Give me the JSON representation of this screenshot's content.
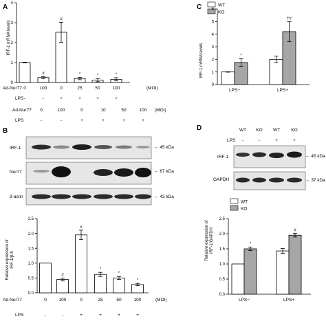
{
  "panels": {
    "A": {
      "letter": "A",
      "ylabel": "IRF-1 mRNA levels",
      "row1_label": "Ad-Nur77",
      "row1": [
        "0",
        "100",
        "0",
        "25",
        "50",
        "100"
      ],
      "row1_unit": "(MOI)",
      "row2_label": "LPS",
      "row2": [
        "-",
        "-",
        "+",
        "+",
        "+",
        "+"
      ]
    },
    "B": {
      "letter": "B",
      "top_row1_label": "Ad-Nur77",
      "top_row1": [
        "0",
        "100",
        "0",
        "10",
        "50",
        "100"
      ],
      "top_row1_unit": "(MOI)",
      "top_row2_label": "LPS",
      "top_row2": [
        "-",
        "-",
        "+",
        "+",
        "+",
        "+"
      ],
      "blots": [
        {
          "name": "IRF-1",
          "kda": "45 kDa"
        },
        {
          "name": "Nur77",
          "kda": "67 kDa"
        },
        {
          "name": "β-actin",
          "kda": "43 kDa"
        }
      ],
      "ylabel_line1": "Relative expression of",
      "ylabel_line2": "IRF-1/β-h",
      "row1_label": "Ad-Nur77",
      "row1": [
        "0",
        "100",
        "0",
        "25",
        "50",
        "100"
      ],
      "row1_unit": "(MOI)",
      "row2_label": "LPS",
      "row2": [
        "-",
        "-",
        "+",
        "+",
        "+",
        "+"
      ]
    },
    "C": {
      "letter": "C",
      "ylabel": "IRF-1 mRNA levels",
      "legend": [
        "WT",
        "KO"
      ],
      "groups": [
        "LPS−",
        "LPS+"
      ]
    },
    "D": {
      "letter": "D",
      "top_row1": [
        "WT",
        "KO",
        "WT",
        "KO"
      ],
      "top_row2_label": "LPS",
      "top_row2": [
        "-",
        "-",
        "+",
        "+"
      ],
      "blots": [
        {
          "name": "IRF-1",
          "kda": "45 kDa"
        },
        {
          "name": "GAPDH",
          "kda": "37 kDa"
        }
      ],
      "legend": [
        "WT",
        "KO"
      ],
      "ylabel_line1": "Relative expression of",
      "ylabel_line2": "IRF-1/GAPDH",
      "groups": [
        "LPS−",
        "LPS+"
      ]
    }
  },
  "chart_data": [
    {
      "id": "A",
      "type": "bar",
      "categories": [
        "1",
        "2",
        "3",
        "4",
        "5",
        "6"
      ],
      "values": [
        1.0,
        0.25,
        2.52,
        0.2,
        0.12,
        0.16
      ],
      "errors": [
        0.02,
        0.05,
        0.5,
        0.06,
        0.08,
        0.08
      ],
      "markers": [
        "",
        "#",
        "#",
        "*",
        "*",
        "*"
      ],
      "ylim": [
        0,
        4
      ],
      "yticks": [
        "0",
        "1",
        "2",
        "3",
        "4"
      ],
      "ylabel": "IRF-1 mRNA levels",
      "colors": {
        "bar": "#ffffff"
      }
    },
    {
      "id": "B",
      "type": "bar",
      "categories": [
        "1",
        "2",
        "3",
        "4",
        "5",
        "6"
      ],
      "values": [
        1.0,
        0.45,
        1.95,
        0.62,
        0.5,
        0.28
      ],
      "errors": [
        0.0,
        0.05,
        0.16,
        0.07,
        0.05,
        0.04
      ],
      "markers": [
        "",
        "#",
        "#",
        "*",
        "*",
        "*"
      ],
      "ylim": [
        0,
        2.5
      ],
      "yticks": [
        "0.0",
        "0.5",
        "1.0",
        "1.5",
        "2.0",
        "2.5"
      ],
      "colors": {
        "bar": "#ffffff"
      }
    },
    {
      "id": "C",
      "type": "bar",
      "categories": [
        "LPS−",
        "LPS+"
      ],
      "series": [
        {
          "name": "WT",
          "values": [
            1.0,
            2.0
          ],
          "errors": [
            0.02,
            0.25
          ],
          "color": "#ffffff"
        },
        {
          "name": "KO",
          "values": [
            1.75,
            4.2
          ],
          "errors": [
            0.3,
            0.8
          ],
          "color": "#a6a6a6"
        }
      ],
      "markers": [
        [
          "",
          "*"
        ],
        [
          "",
          "†#"
        ]
      ],
      "ylim": [
        0,
        6
      ],
      "yticks": [
        "0",
        "1",
        "2",
        "3",
        "4",
        "5",
        "6"
      ],
      "ylabel": "IRF-1 mRNA levels"
    },
    {
      "id": "D",
      "type": "bar",
      "categories": [
        "LPS−",
        "LPS+"
      ],
      "series": [
        {
          "name": "WT",
          "values": [
            1.0,
            1.43
          ],
          "errors": [
            0.0,
            0.08
          ],
          "color": "#ffffff"
        },
        {
          "name": "KO",
          "values": [
            1.5,
            1.95
          ],
          "errors": [
            0.06,
            0.06
          ],
          "color": "#a6a6a6"
        }
      ],
      "markers": [
        [
          "",
          "*"
        ],
        [
          "",
          "#"
        ]
      ],
      "ylim": [
        0,
        2.5
      ],
      "yticks": [
        "0.0",
        "0.5",
        "1.0",
        "1.5",
        "2.0",
        "2.5"
      ]
    }
  ]
}
